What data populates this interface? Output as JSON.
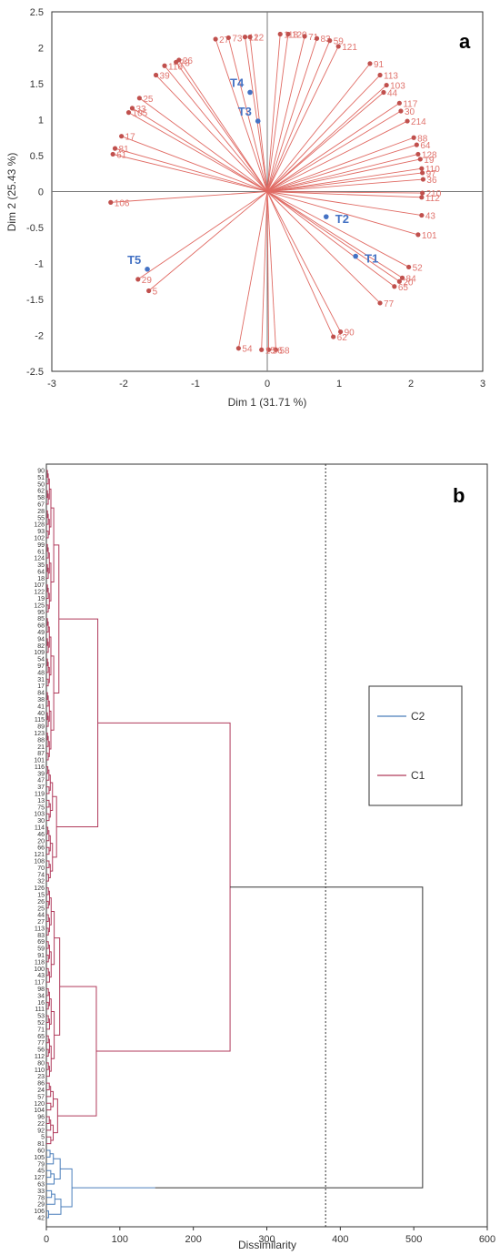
{
  "colors": {
    "observation": "#c0504d",
    "observation_label": "#e0736d",
    "variable": "#4472c4",
    "c1": "#b03a5b",
    "c2": "#4a7ebb",
    "top_link": "#333333"
  },
  "chart_data": [
    {
      "type": "scatter",
      "panel": "a",
      "xlabel": "Dim 1 (31.71 %)",
      "ylabel": "Dim 2 (25.43 %)",
      "xlim": [
        -3,
        3
      ],
      "ylim": [
        -2.5,
        2.5
      ],
      "xticks": [
        "-3",
        "-2",
        "-1",
        "0",
        "1",
        "2",
        "3"
      ],
      "yticks": [
        "2.5",
        "2",
        "1.5",
        "1",
        "0.5",
        "0",
        "-0.5",
        "-1",
        "-1.5",
        "-2",
        "-2.5"
      ],
      "xtick_values": [
        -3,
        -2,
        -1,
        0,
        1,
        2,
        3
      ],
      "ytick_values": [
        2.5,
        2,
        1.5,
        1,
        0.5,
        0,
        -0.5,
        -1,
        -1.5,
        -2,
        -2.5
      ],
      "variables": [
        {
          "label": "T1",
          "x": 1.23,
          "y": -0.9
        },
        {
          "label": "T2",
          "x": 0.82,
          "y": -0.35
        },
        {
          "label": "T3",
          "x": -0.13,
          "y": 0.98
        },
        {
          "label": "T4",
          "x": -0.24,
          "y": 1.38
        },
        {
          "label": "T5",
          "x": -1.67,
          "y": -1.08
        }
      ],
      "observations": [
        {
          "label": "106",
          "x": -2.18,
          "y": -0.15
        },
        {
          "label": "5",
          "x": -1.65,
          "y": -1.38
        },
        {
          "label": "29",
          "x": -1.8,
          "y": -1.22
        },
        {
          "label": "81",
          "x": -2.12,
          "y": 0.6
        },
        {
          "label": "61",
          "x": -2.15,
          "y": 0.52
        },
        {
          "label": "17",
          "x": -2.03,
          "y": 0.77
        },
        {
          "label": "105",
          "x": -1.93,
          "y": 1.1
        },
        {
          "label": "33",
          "x": -1.88,
          "y": 1.16
        },
        {
          "label": "25",
          "x": -1.78,
          "y": 1.3
        },
        {
          "label": "39",
          "x": -1.55,
          "y": 1.62
        },
        {
          "label": "116",
          "x": -1.43,
          "y": 1.75
        },
        {
          "label": "78",
          "x": -1.27,
          "y": 1.8
        },
        {
          "label": "26",
          "x": -1.23,
          "y": 1.83
        },
        {
          "label": "27",
          "x": -0.72,
          "y": 2.12
        },
        {
          "label": "73",
          "x": -0.54,
          "y": 2.14
        },
        {
          "label": "122",
          "x": -0.31,
          "y": 2.15
        },
        {
          "label": "1",
          "x": -0.24,
          "y": 2.15
        },
        {
          "label": "118",
          "x": 0.18,
          "y": 2.19
        },
        {
          "label": "120",
          "x": 0.29,
          "y": 2.19
        },
        {
          "label": "71",
          "x": 0.52,
          "y": 2.16
        },
        {
          "label": "83",
          "x": 0.69,
          "y": 2.13
        },
        {
          "label": "59",
          "x": 0.87,
          "y": 2.1
        },
        {
          "label": "121",
          "x": 0.99,
          "y": 2.02
        },
        {
          "label": "91",
          "x": 1.43,
          "y": 1.78
        },
        {
          "label": "113",
          "x": 1.57,
          "y": 1.62
        },
        {
          "label": "103",
          "x": 1.66,
          "y": 1.48
        },
        {
          "label": "44",
          "x": 1.62,
          "y": 1.38
        },
        {
          "label": "117",
          "x": 1.84,
          "y": 1.23
        },
        {
          "label": "30",
          "x": 1.86,
          "y": 1.12
        },
        {
          "label": "214",
          "x": 1.95,
          "y": 0.98
        },
        {
          "label": "88",
          "x": 2.04,
          "y": 0.75
        },
        {
          "label": "64",
          "x": 2.08,
          "y": 0.65
        },
        {
          "label": "128",
          "x": 2.1,
          "y": 0.52
        },
        {
          "label": "19",
          "x": 2.13,
          "y": 0.45
        },
        {
          "label": "110",
          "x": 2.15,
          "y": 0.32
        },
        {
          "label": "97",
          "x": 2.16,
          "y": 0.26
        },
        {
          "label": "36",
          "x": 2.17,
          "y": 0.17
        },
        {
          "label": "210",
          "x": 2.16,
          "y": -0.02
        },
        {
          "label": "112",
          "x": 2.15,
          "y": -0.08
        },
        {
          "label": "43",
          "x": 2.15,
          "y": -0.33
        },
        {
          "label": "101",
          "x": 2.1,
          "y": -0.6
        },
        {
          "label": "52",
          "x": 1.97,
          "y": -1.05
        },
        {
          "label": "84",
          "x": 1.88,
          "y": -1.2
        },
        {
          "label": "20",
          "x": 1.84,
          "y": -1.25
        },
        {
          "label": "65",
          "x": 1.77,
          "y": -1.32
        },
        {
          "label": "77",
          "x": 1.57,
          "y": -1.55
        },
        {
          "label": "90",
          "x": 1.02,
          "y": -1.95
        },
        {
          "label": "62",
          "x": 0.92,
          "y": -2.02
        },
        {
          "label": "58",
          "x": 0.12,
          "y": -2.2
        },
        {
          "label": "56",
          "x": 0.02,
          "y": -2.2
        },
        {
          "label": "15",
          "x": -0.08,
          "y": -2.2
        },
        {
          "label": "54",
          "x": -0.4,
          "y": -2.18
        }
      ]
    },
    {
      "type": "dendrogram",
      "panel": "b",
      "xlabel": "Dissimilarity",
      "xlim": [
        0,
        600
      ],
      "xticks": [
        "0",
        "100",
        "200",
        "300",
        "400",
        "500",
        "600"
      ],
      "xtick_values": [
        0,
        100,
        200,
        300,
        400,
        500,
        600
      ],
      "cut_line": 380,
      "legend": [
        "C2",
        "C1"
      ],
      "leaves": [
        "90",
        "51",
        "50",
        "62",
        "58",
        "67",
        "28",
        "55",
        "128",
        "93",
        "102",
        "99",
        "61",
        "124",
        "35",
        "64",
        "18",
        "107",
        "122",
        "19",
        "125",
        "95",
        "85",
        "68",
        "49",
        "94",
        "82",
        "109",
        "54",
        "97",
        "48",
        "31",
        "17",
        "84",
        "38",
        "41",
        "40",
        "115",
        "89",
        "123",
        "88",
        "21",
        "87",
        "101",
        "116",
        "39",
        "47",
        "37",
        "119",
        "13",
        "75",
        "103",
        "30",
        "114",
        "46",
        "20",
        "66",
        "121",
        "108",
        "70",
        "74",
        "32",
        "126",
        "15",
        "26",
        "25",
        "44",
        "27",
        "113",
        "83",
        "69",
        "59",
        "91",
        "118",
        "100",
        "43",
        "117",
        "98",
        "34",
        "16",
        "111",
        "53",
        "52",
        "71",
        "65",
        "77",
        "56",
        "112",
        "80",
        "110",
        "23",
        "86",
        "24",
        "57",
        "120",
        "104",
        "96",
        "22",
        "92",
        "5",
        "81",
        "60",
        "105",
        "79",
        "45",
        "127",
        "63",
        "33",
        "78",
        "29",
        "106",
        "42"
      ],
      "merge_heights": {
        "c1_sub_a": 70,
        "c1_sub_b": 40,
        "c1_sub_c": 60,
        "c1_sub_d": 68,
        "c1_mid_ab": 70,
        "c1_mid_cd": 68,
        "c1_root": 250,
        "c2_root": 148,
        "root": 512
      }
    }
  ]
}
